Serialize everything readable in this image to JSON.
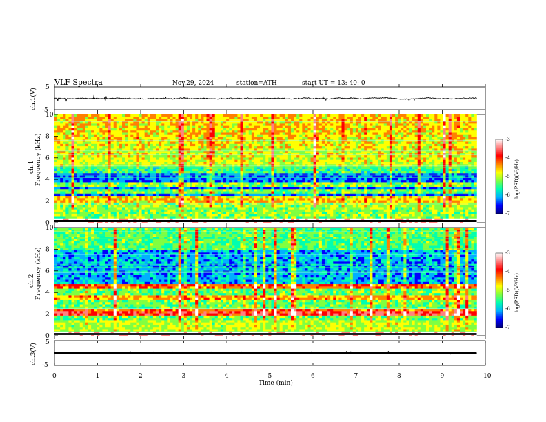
{
  "header": {
    "title": "VLF  Spectra",
    "date": "Nov.29, 2024",
    "station": "station=ATH",
    "start": "start  UT  =   13: 40: 0"
  },
  "colors": {
    "waveform": "#000000",
    "colormap": [
      "#00007f",
      "#0000ff",
      "#00b0ff",
      "#00ffb0",
      "#80ff40",
      "#ffff00",
      "#ff8000",
      "#ff0000",
      "#ff8080",
      "#ffffff"
    ]
  },
  "chart_data": [
    {
      "type": "line",
      "panel": "ch1-waveform",
      "ylabel": "ch.1(V)",
      "yticks": [
        "5",
        "-5"
      ],
      "ylim": [
        -5,
        5
      ],
      "xlim": [
        0,
        10
      ],
      "description_values": {
        "mean": 0,
        "amplitude_typical": 1.0,
        "amplitude_peak": 3.0
      }
    },
    {
      "type": "heatmap",
      "panel": "ch1-spectrogram",
      "ylabel_channel": "ch.1",
      "ylabel": "Frequency  (kHz)",
      "yticks": [
        "0",
        "2",
        "4",
        "6",
        "8",
        "10"
      ],
      "ylim": [
        0,
        10
      ],
      "xlim": [
        0,
        9.8
      ],
      "zlim": [
        -7,
        -3
      ],
      "colorbar_label": "log(PSD)(V²/Hz)",
      "colorbar_ticks": [
        "-3",
        "-4",
        "-5",
        "-6",
        "-7"
      ],
      "bands_khz": [
        {
          "f": 0.1,
          "level": -3.0
        },
        {
          "f": 2.0,
          "level": -4.6
        },
        {
          "f": 2.3,
          "level": -4.8
        },
        {
          "f": 3.0,
          "level": -5.3
        },
        {
          "f": 3.6,
          "level": -5.2
        },
        {
          "f": 4.9,
          "level": -5.5
        }
      ]
    },
    {
      "type": "heatmap",
      "panel": "ch2-spectrogram",
      "ylabel_channel": "ch.2",
      "ylabel": "Frequency  (kHz)",
      "yticks": [
        "0",
        "2",
        "4",
        "6",
        "8",
        "10"
      ],
      "ylim": [
        0,
        10
      ],
      "xlim": [
        0,
        9.8
      ],
      "zlim": [
        -7,
        -3
      ],
      "colorbar_label": "log(PSD)(V²/Hz)",
      "colorbar_ticks": [
        "-3",
        "-4",
        "-5",
        "-6",
        "-7"
      ],
      "bands_khz": [
        {
          "f": 0.1,
          "level": -3.0
        },
        {
          "f": 2.0,
          "level": -3.8
        },
        {
          "f": 2.2,
          "level": -4.2
        },
        {
          "f": 3.5,
          "level": -4.5
        },
        {
          "f": 4.6,
          "level": -4.2
        }
      ]
    },
    {
      "type": "line",
      "panel": "ch3-waveform",
      "ylabel": "ch.3(V)",
      "yticks": [
        "5",
        "-5"
      ],
      "ylim": [
        -5,
        5
      ],
      "xlim": [
        0,
        10
      ],
      "description_values": {
        "mean": 0,
        "amplitude_typical": 0.3,
        "amplitude_peak": 0.4
      }
    }
  ],
  "xaxis": {
    "label": "Time  (min)",
    "ticks": [
      "0",
      "1",
      "2",
      "3",
      "4",
      "5",
      "6",
      "7",
      "8",
      "9",
      "10"
    ],
    "xlim": [
      0,
      10
    ]
  }
}
